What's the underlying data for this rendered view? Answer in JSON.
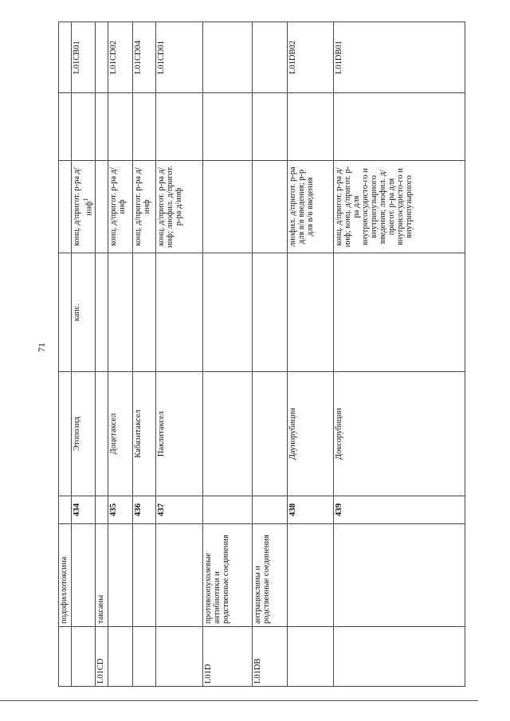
{
  "page_number": "71",
  "rows": [
    {
      "code": "",
      "group": "подофиллотоксина",
      "num": "",
      "name": "",
      "form1": "",
      "form2": "",
      "form2_sup": "",
      "atc": ""
    },
    {
      "code": "",
      "group": "",
      "num": "434",
      "name": "Этопозид",
      "form1": "капс.",
      "form2": "конц. д/пригот. р-ра д/инф",
      "form2_sup": "1",
      "atc": "L01CB01"
    },
    {
      "code": "L01CD",
      "group": "таксаны",
      "num": "",
      "name": "",
      "form1": "",
      "form2": "",
      "form2_sup": "",
      "atc": ""
    },
    {
      "code": "",
      "group": "",
      "num": "435",
      "name": "Доцетаксел",
      "form1": "",
      "form2": "конц. д/пригот. р-ра д/инф",
      "form2_sup": "",
      "atc": "L01CD02"
    },
    {
      "code": "",
      "group": "",
      "num": "436",
      "name": "Кабазитаксел",
      "form1": "",
      "form2": "конц. д/пригот. р-ра д/инф",
      "form2_sup": "",
      "atc": "L01CD04"
    },
    {
      "code": "",
      "group": "",
      "num": "437",
      "name": "Паклитаксел",
      "form1": "",
      "form2": "конц. д/пригот. р-ра д/инф; лиофил. д/пригот. р-ра д/инф",
      "form2_sup": "",
      "atc": "L01CD01"
    },
    {
      "code": "L01D",
      "group": "противоопухолевые антибиотики и родственные соединения",
      "num": "",
      "name": "",
      "form1": "",
      "form2": "",
      "form2_sup": "",
      "atc": ""
    },
    {
      "code": "L01DB",
      "group": "антрациклины и родственные соединения",
      "num": "",
      "name": "",
      "form1": "",
      "form2": "",
      "form2_sup": "",
      "atc": ""
    },
    {
      "code": "",
      "group": "",
      "num": "438",
      "name": "Даунорубицин",
      "form1": "",
      "form2": "лиофил. д/пригот. р-ра для в/в введения; р-р для в/в введения",
      "form2_sup": "",
      "atc": "L01DB02"
    },
    {
      "code": "",
      "group": "",
      "num": "439",
      "name": "Доксорубицин",
      "form1": "",
      "form2": "конц. д/пригот. р-ра д/инф; конц. д/пригот. р-ра для внутрисосудисто-го и внутрипузырного введения; лиофил. д/пригот. р-ра для внутрисосудисто-го и внутрипузырного",
      "form2_sup": "",
      "atc": "L01DB01"
    }
  ]
}
